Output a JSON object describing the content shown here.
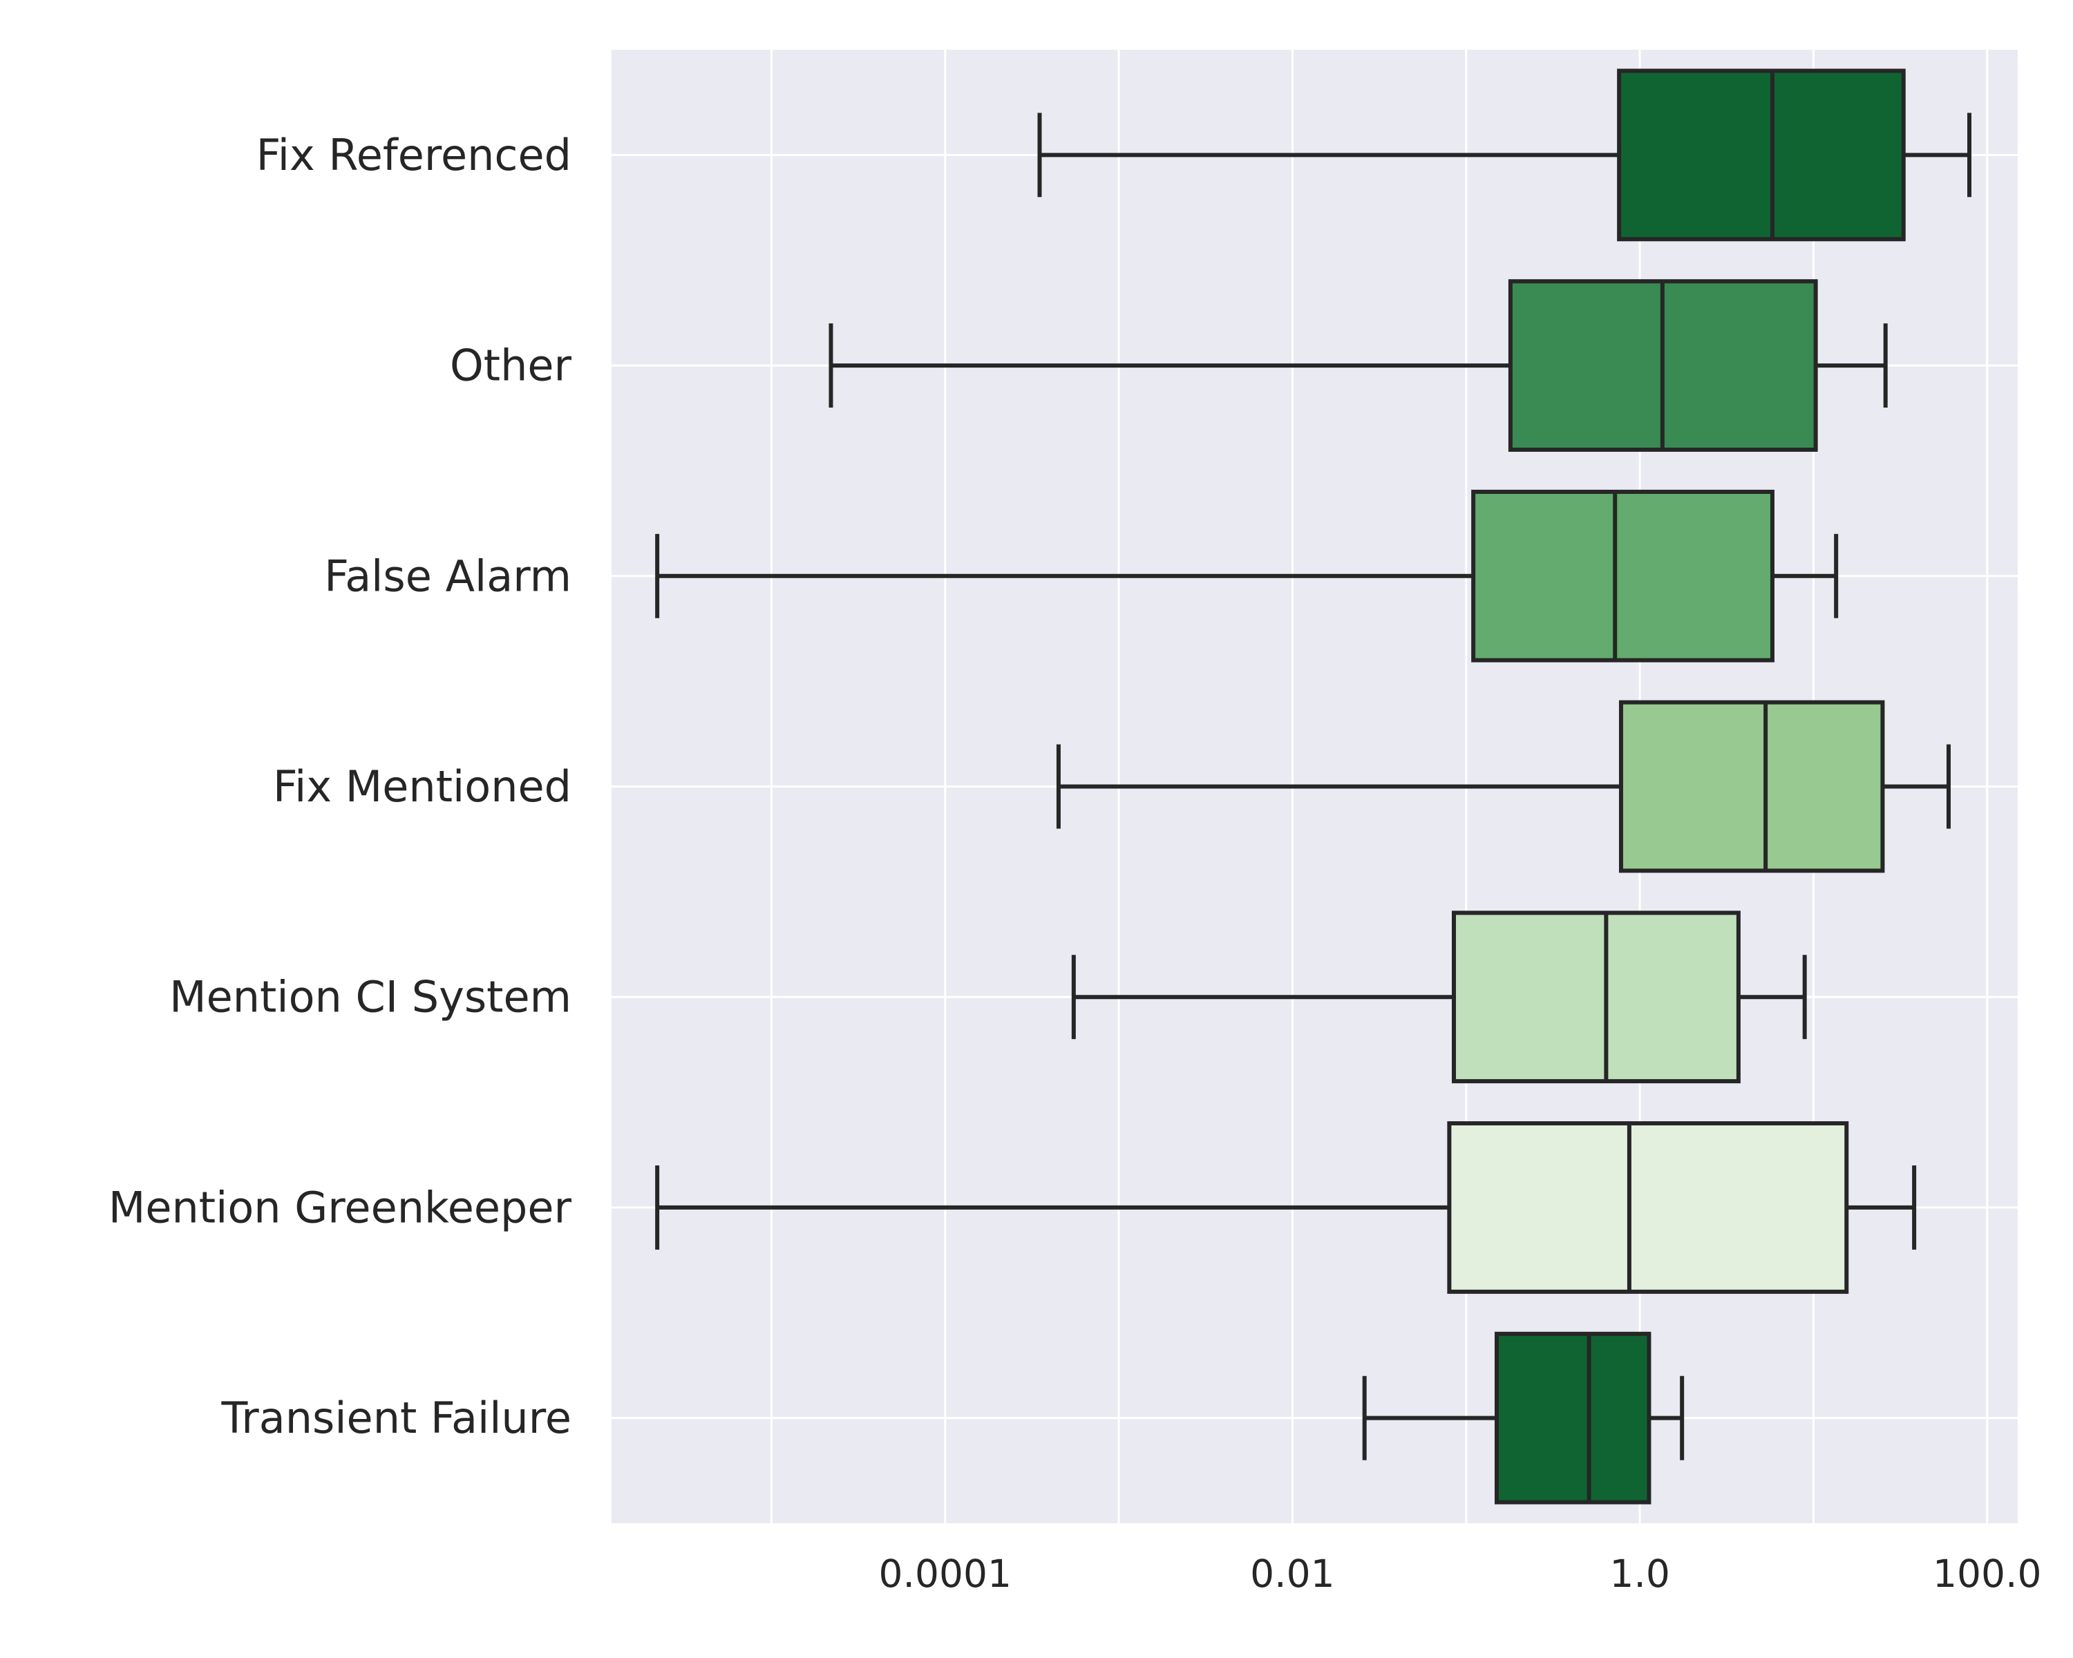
{
  "chart_data": {
    "type": "box",
    "orientation": "horizontal",
    "title": "",
    "xlabel": "",
    "ylabel": "",
    "x_scale": "log",
    "xlim": [
      1.2e-06,
      150
    ],
    "x_ticks": [
      0.0001,
      0.01,
      1.0,
      100.0
    ],
    "x_tick_labels": [
      "0.0001",
      "0.01",
      "1.0",
      "100.0"
    ],
    "grid": true,
    "background": "#eaeaf2",
    "categories": [
      "Fix Referenced",
      "Other",
      "False Alarm",
      "Fix Mentioned",
      "Mention CI System",
      "Mention Greenkeeper",
      "Transient Failure"
    ],
    "boxes": [
      {
        "category": "Fix Referenced",
        "whisker_low": 0.00035,
        "q1": 0.76,
        "median": 5.8,
        "q3": 33,
        "whisker_high": 79,
        "color": "#106432"
      },
      {
        "category": "Other",
        "whisker_low": 2.2e-05,
        "q1": 0.18,
        "median": 1.35,
        "q3": 10.3,
        "whisker_high": 26,
        "color": "#3a8a53"
      },
      {
        "category": "False Alarm",
        "whisker_low": 2.2e-06,
        "q1": 0.11,
        "median": 0.72,
        "q3": 5.8,
        "whisker_high": 13.5,
        "color": "#63ab6e"
      },
      {
        "category": "Fix Mentioned",
        "whisker_low": 0.00045,
        "q1": 0.78,
        "median": 5.3,
        "q3": 25,
        "whisker_high": 60,
        "color": "#98c991"
      },
      {
        "category": "Mention CI System",
        "whisker_low": 0.00055,
        "q1": 0.085,
        "median": 0.64,
        "q3": 3.7,
        "whisker_high": 8.9,
        "color": "#c0dfbb"
      },
      {
        "category": "Mention Greenkeeper",
        "whisker_low": 2.2e-06,
        "q1": 0.08,
        "median": 0.87,
        "q3": 15.5,
        "whisker_high": 38,
        "color": "#e3f0de"
      },
      {
        "category": "Transient Failure",
        "whisker_low": 0.026,
        "q1": 0.15,
        "median": 0.51,
        "q3": 1.13,
        "whisker_high": 1.75,
        "color": "#106432"
      }
    ]
  }
}
